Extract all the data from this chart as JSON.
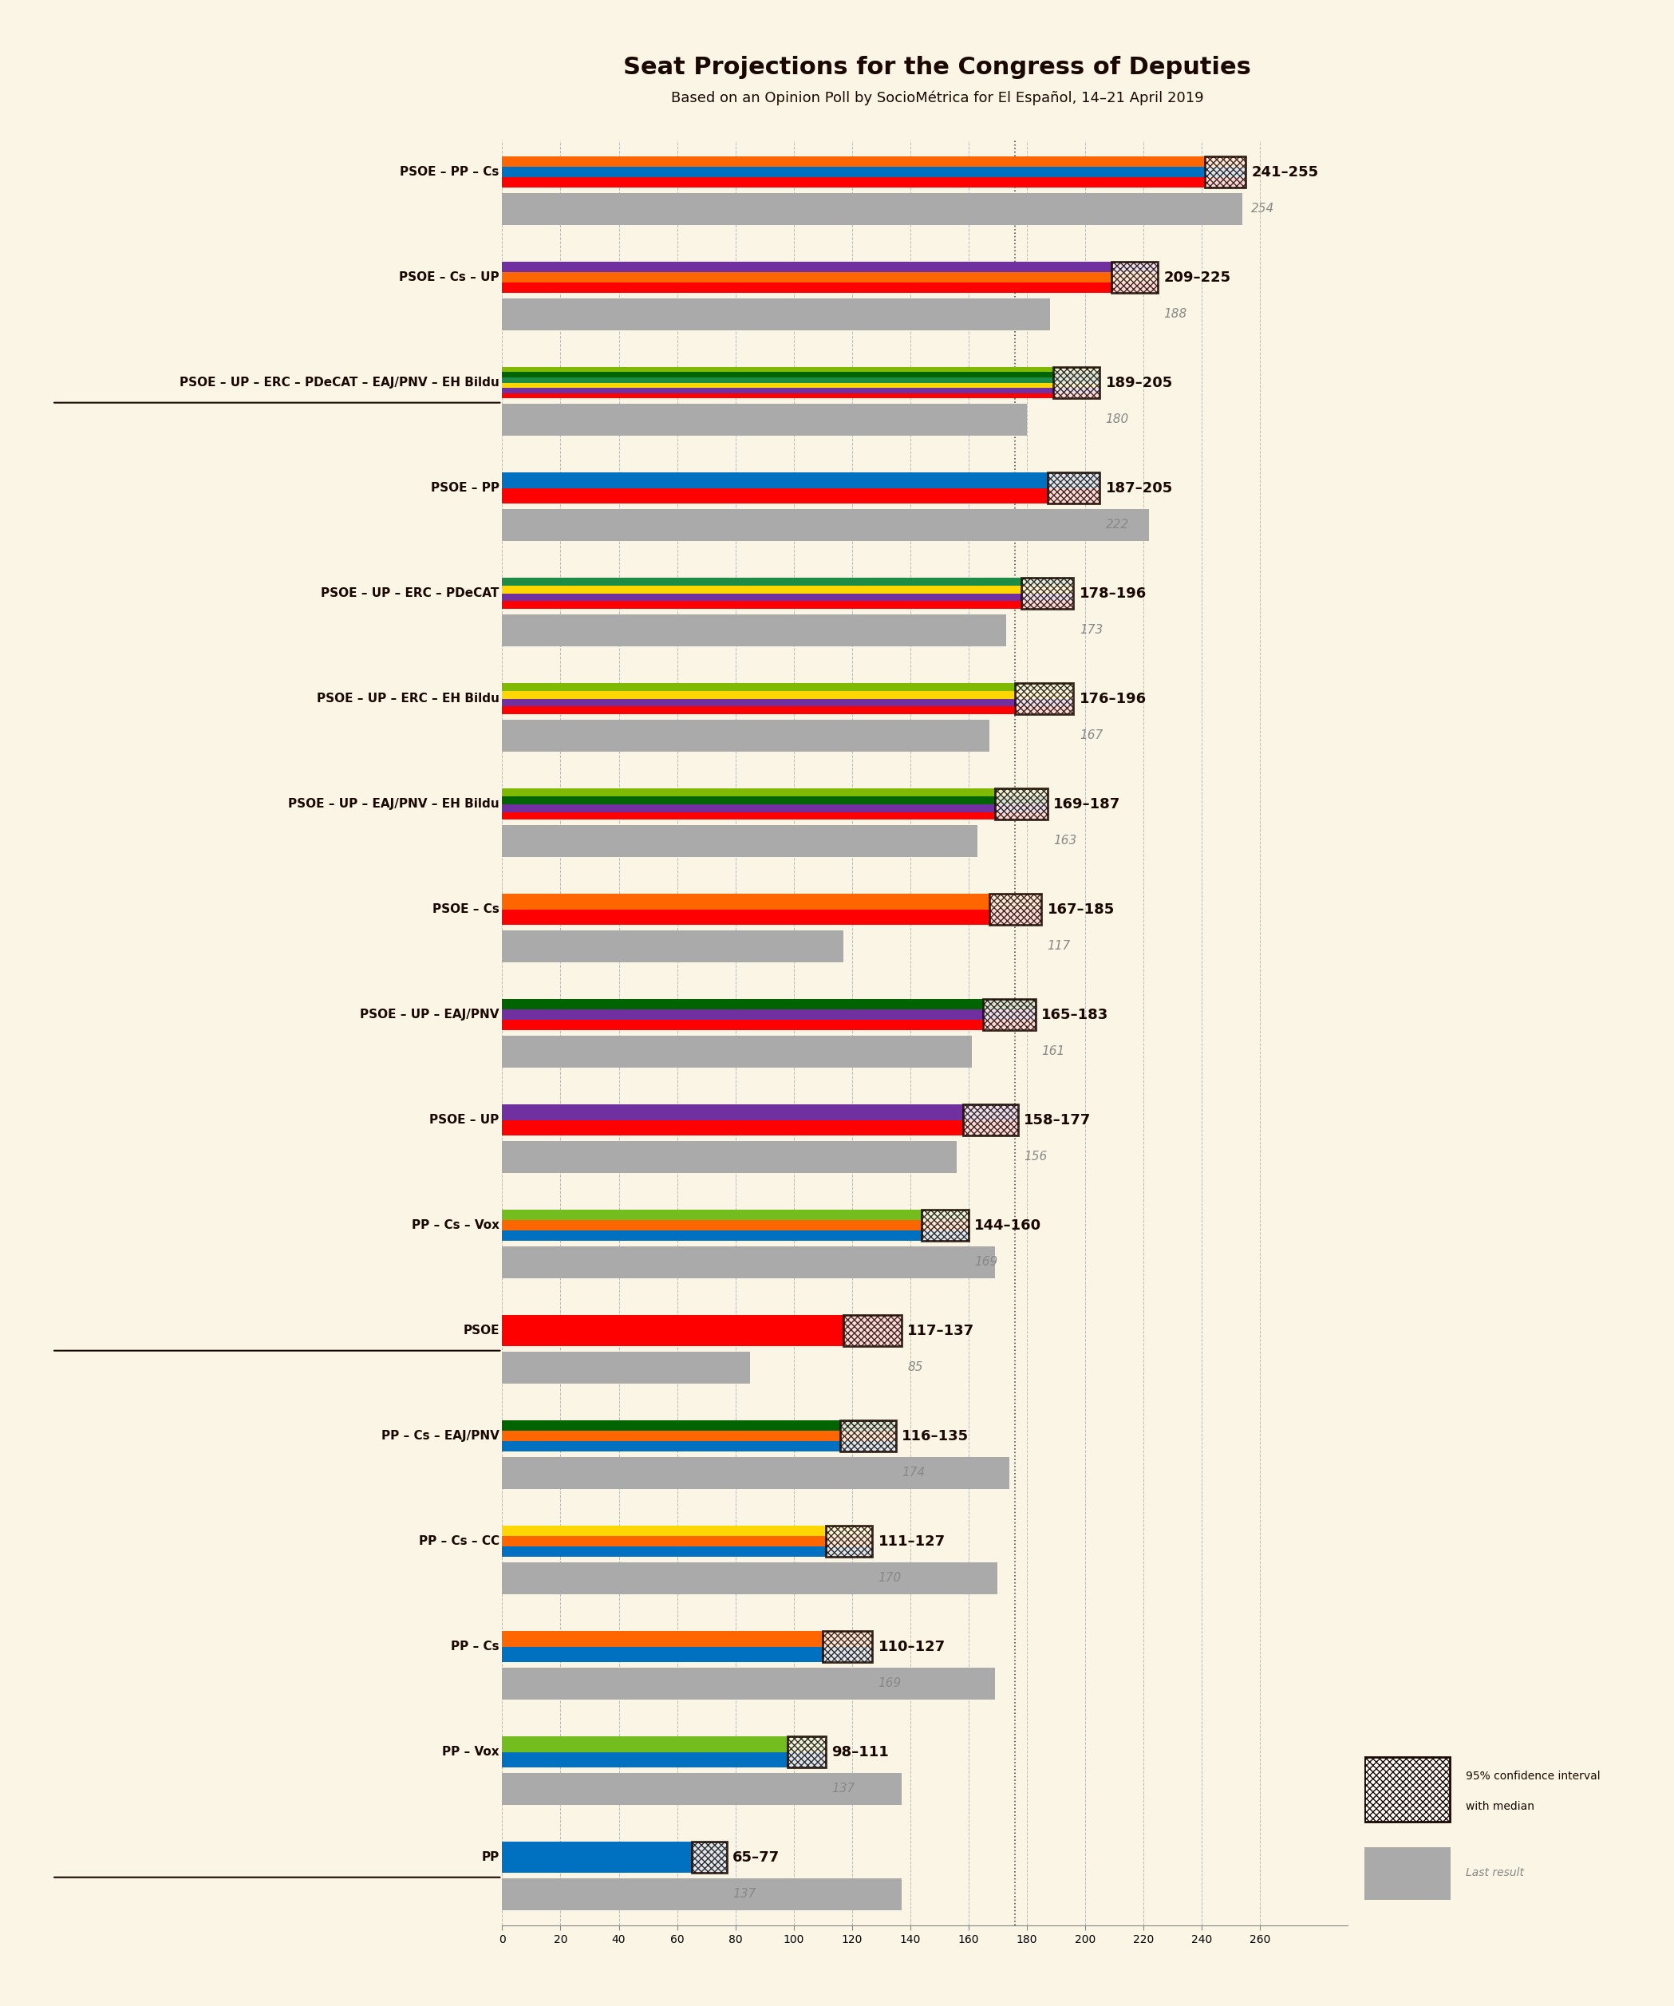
{
  "title": "Seat Projections for the Congress of Deputies",
  "subtitle": "Based on an Opinion Poll by SocioMétrica for El Español, 14–21 April 2019",
  "background_color": "#faf5e4",
  "text_color": "#1a0800",
  "coalitions": [
    {
      "name": "PSOE – PP – Cs",
      "low": 241,
      "high": 255,
      "last": 254,
      "underline": false
    },
    {
      "name": "PSOE – Cs – UP",
      "low": 209,
      "high": 225,
      "last": 188,
      "underline": false
    },
    {
      "name": "PSOE – UP – ERC – PDeCAT – EAJ/PNV – EH Bildu",
      "low": 189,
      "high": 205,
      "last": 180,
      "underline": true
    },
    {
      "name": "PSOE – PP",
      "low": 187,
      "high": 205,
      "last": 222,
      "underline": false
    },
    {
      "name": "PSOE – UP – ERC – PDeCAT",
      "low": 178,
      "high": 196,
      "last": 173,
      "underline": false
    },
    {
      "name": "PSOE – UP – ERC – EH Bildu",
      "low": 176,
      "high": 196,
      "last": 167,
      "underline": false
    },
    {
      "name": "PSOE – UP – EAJ/PNV – EH Bildu",
      "low": 169,
      "high": 187,
      "last": 163,
      "underline": false
    },
    {
      "name": "PSOE – Cs",
      "low": 167,
      "high": 185,
      "last": 117,
      "underline": false
    },
    {
      "name": "PSOE – UP – EAJ/PNV",
      "low": 165,
      "high": 183,
      "last": 161,
      "underline": false
    },
    {
      "name": "PSOE – UP",
      "low": 158,
      "high": 177,
      "last": 156,
      "underline": false
    },
    {
      "name": "PP – Cs – Vox",
      "low": 144,
      "high": 160,
      "last": 169,
      "underline": false
    },
    {
      "name": "PSOE",
      "low": 117,
      "high": 137,
      "last": 85,
      "underline": true
    },
    {
      "name": "PP – Cs – EAJ/PNV",
      "low": 116,
      "high": 135,
      "last": 174,
      "underline": false
    },
    {
      "name": "PP – Cs – CC",
      "low": 111,
      "high": 127,
      "last": 170,
      "underline": false
    },
    {
      "name": "PP – Cs",
      "low": 110,
      "high": 127,
      "last": 169,
      "underline": false
    },
    {
      "name": "PP – Vox",
      "low": 98,
      "high": 111,
      "last": 137,
      "underline": false
    },
    {
      "name": "PP",
      "low": 65,
      "high": 77,
      "last": 137,
      "underline": true
    }
  ],
  "bar_stripe_colors": [
    [
      "#FF0000",
      "#0070C0",
      "#FF6600"
    ],
    [
      "#FF0000",
      "#FF6600",
      "#7030A0"
    ],
    [
      "#FF0000",
      "#7030A0",
      "#FFD700",
      "#1E8C45",
      "#006400",
      "#7FBA00"
    ],
    [
      "#FF0000",
      "#0070C0"
    ],
    [
      "#FF0000",
      "#7030A0",
      "#FFD700",
      "#1E8C45"
    ],
    [
      "#FF0000",
      "#7030A0",
      "#FFD700",
      "#7FBA00"
    ],
    [
      "#FF0000",
      "#7030A0",
      "#006400",
      "#7FBA00"
    ],
    [
      "#FF0000",
      "#FF6600"
    ],
    [
      "#FF0000",
      "#7030A0",
      "#006400"
    ],
    [
      "#FF0000",
      "#7030A0"
    ],
    [
      "#0070C0",
      "#FF6600",
      "#73BE1E"
    ],
    [
      "#FF0000"
    ],
    [
      "#0070C0",
      "#FF6600",
      "#006400"
    ],
    [
      "#0070C0",
      "#FF6600",
      "#FFD700"
    ],
    [
      "#0070C0",
      "#FF6600"
    ],
    [
      "#0070C0",
      "#73BE1E"
    ],
    [
      "#0070C0"
    ]
  ],
  "xlim_max": 260,
  "majority_line": 176,
  "last_result_color": "#AAAAAA",
  "grid_color": "#BBBBBB",
  "ci_edge_color": "#1A0800",
  "ci_hatch": "xxxx"
}
